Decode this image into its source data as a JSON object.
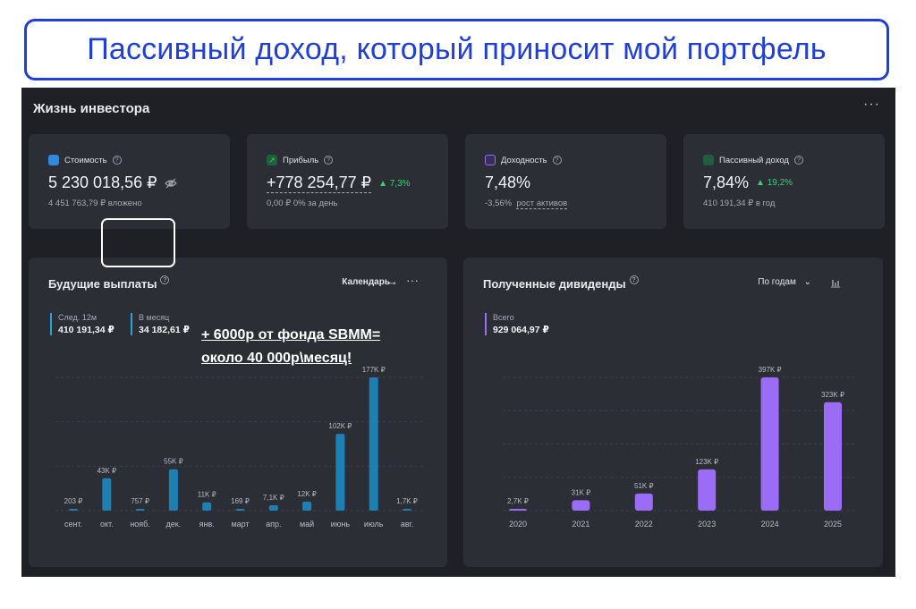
{
  "banner": {
    "text": "Пассивный доход, который приносит мой портфель"
  },
  "header": {
    "title": "Жизнь инвестора",
    "more": "···"
  },
  "cards": [
    {
      "label": "Стоимость",
      "value": "5 230 018,56 ₽",
      "sub": "4 451 763,79 ₽ вложено",
      "icon_color": "#2d8ae0"
    },
    {
      "label": "Прибыль",
      "value": "+778 254,77 ₽",
      "badge": "▲ 7,3%",
      "sub": "0,00 ₽  0% за день",
      "icon_color": "#3fcf7a"
    },
    {
      "label": "Доходность",
      "value": "7,48%",
      "sub_a": "-3,56%",
      "sub_b": "рост активов",
      "icon_color": "#9b6cf5"
    },
    {
      "label": "Пассивный доход",
      "value": "7,84%",
      "badge": "▲ 19,2%",
      "sub": "410 191,34 ₽ в год",
      "icon_color": "#3fcf7a"
    }
  ],
  "future": {
    "title": "Будущие выплаты",
    "calendar": "Календарь",
    "arrow": "→",
    "more": "···",
    "legend_next": {
      "label": "След. 12м",
      "value": "410 191,34 ₽"
    },
    "legend_month": {
      "label": "В месяц",
      "value": "34 182,61 ₽"
    }
  },
  "annotation": {
    "line1": "+ 6000р от фонда SBMM=",
    "line2": "около 40 000р\\месяц!"
  },
  "received": {
    "title": "Полученные дивиденды",
    "select": "По годам",
    "legend_total": {
      "label": "Всего",
      "value": "929 064,97 ₽"
    }
  },
  "chart_data": [
    {
      "type": "bar",
      "categories": [
        "сент.",
        "окт.",
        "нояб.",
        "дек.",
        "янв.",
        "март",
        "апр.",
        "май",
        "июнь",
        "июль",
        "авг."
      ],
      "values": [
        203,
        43000,
        757,
        55000,
        11000,
        169,
        7100,
        12000,
        102000,
        177000,
        1700
      ],
      "labels": [
        "203 ₽",
        "43K ₽",
        "757 ₽",
        "55K ₽",
        "11K ₽",
        "169 ₽",
        "7,1K ₽",
        "12K ₽",
        "102K ₽",
        "177K ₽",
        "1,7K ₽"
      ],
      "ylim": [
        0,
        177000
      ],
      "color": "#1e7fb3"
    },
    {
      "type": "bar",
      "categories": [
        "2020",
        "2021",
        "2022",
        "2023",
        "2024",
        "2025"
      ],
      "values": [
        2700,
        31000,
        51000,
        123000,
        397000,
        323000
      ],
      "labels": [
        "2,7K ₽",
        "31K ₽",
        "51K ₽",
        "123K ₽",
        "397K ₽",
        "323K ₽"
      ],
      "ylim": [
        0,
        397000
      ],
      "color": "#9b6cf5"
    }
  ]
}
